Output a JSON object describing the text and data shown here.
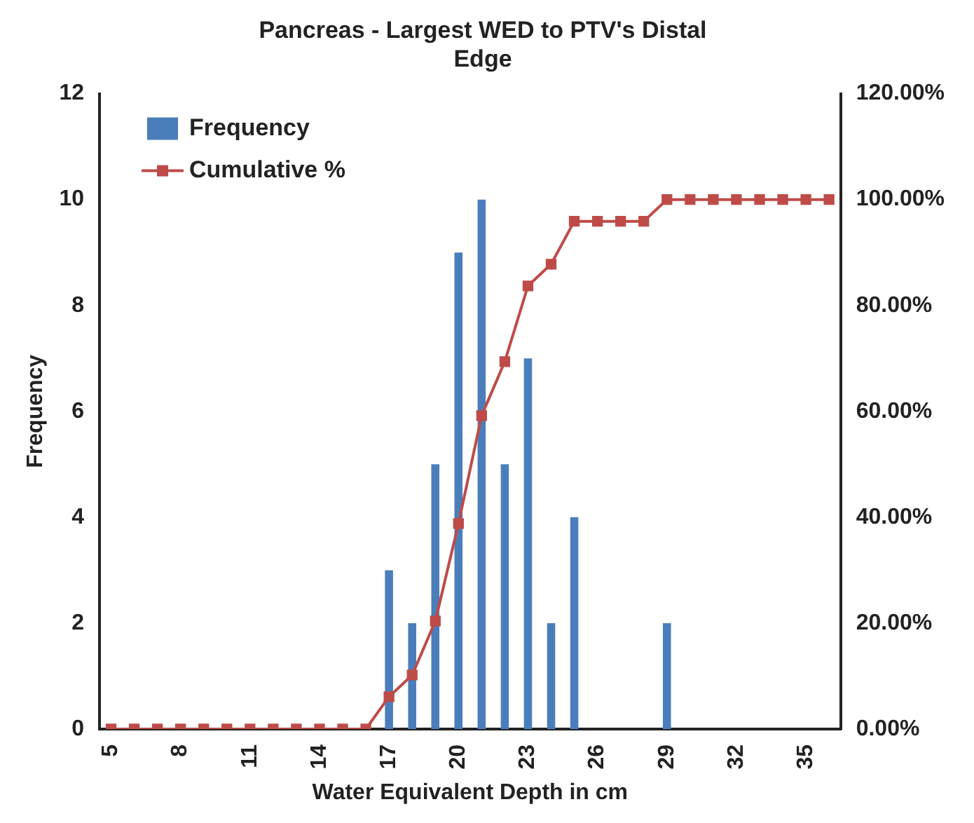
{
  "chart_data": {
    "type": "bar",
    "title": "Pancreas - Largest WED to PTV's Distal Edge",
    "xlabel": "Water Equivalent Depth in cm",
    "ylabel": "Frequency",
    "categories": [
      "5",
      null,
      null,
      "8",
      null,
      null,
      "11",
      null,
      null,
      "14",
      null,
      null,
      "17",
      null,
      null,
      "20",
      null,
      null,
      "23",
      null,
      null,
      "26",
      null,
      null,
      "29",
      null,
      null,
      "32",
      null,
      null,
      "35",
      null
    ],
    "series": [
      {
        "name": "Frequency",
        "color": "#4a7ebb",
        "values": [
          null,
          null,
          null,
          null,
          null,
          null,
          null,
          null,
          null,
          null,
          null,
          null,
          3,
          2,
          5,
          9,
          10,
          5,
          7,
          2,
          4,
          0,
          0,
          0,
          2,
          0,
          0,
          0,
          0,
          0,
          0,
          0
        ]
      },
      {
        "name": "Cumulative %",
        "type": "line",
        "axis": "y2",
        "color": "#be4b48",
        "values": [
          0,
          0,
          0,
          0,
          0,
          0,
          0,
          0,
          0,
          0,
          0,
          0,
          6.1,
          10.2,
          20.4,
          38.8,
          59.2,
          69.4,
          83.7,
          87.8,
          95.9,
          95.9,
          95.9,
          95.9,
          100,
          100,
          100,
          100,
          100,
          100,
          100,
          100
        ]
      }
    ],
    "ylim": [
      0,
      12
    ],
    "yticks": [
      0,
      2,
      4,
      6,
      8,
      10,
      12
    ],
    "y2lim": [
      0,
      120
    ],
    "y2ticks": [
      {
        "value": 0,
        "label": "0.00%"
      },
      {
        "value": 20,
        "label": "20.00%"
      },
      {
        "value": 40,
        "label": "40.00%"
      },
      {
        "value": 60,
        "label": "60.00%"
      },
      {
        "value": 80,
        "label": "80.00%"
      },
      {
        "value": 100,
        "label": "100.00%"
      },
      {
        "value": 120,
        "label": "120.00%"
      }
    ],
    "legend": "top left",
    "marker": "square",
    "grid": false
  }
}
